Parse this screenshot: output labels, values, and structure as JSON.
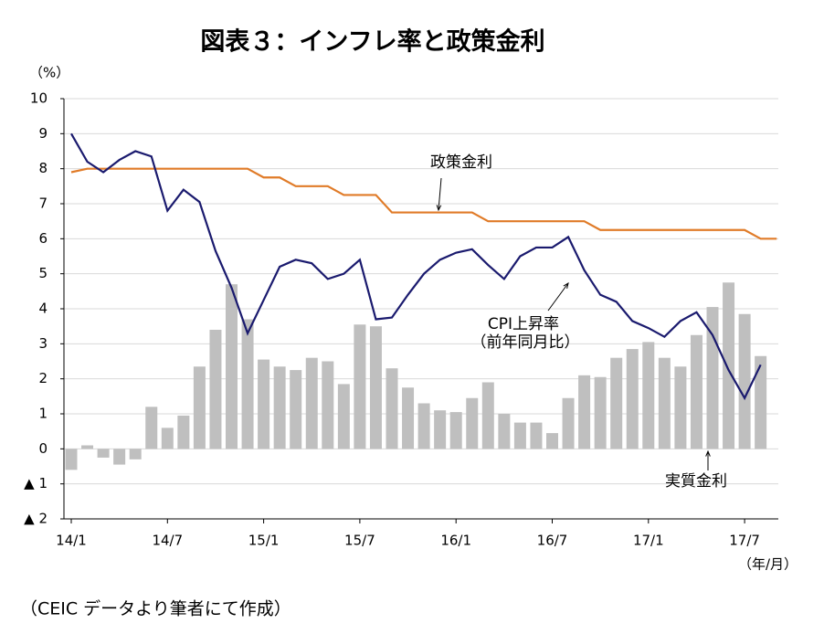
{
  "chart_data": {
    "type": "bar_line",
    "title": "図表３：インフレ率と政策金利",
    "y_unit": "（%）",
    "x_unit": "（年/月）",
    "source": "（CEIC データより筆者にて作成）",
    "categories": [
      "14/1",
      null,
      null,
      null,
      null,
      null,
      "14/7",
      null,
      null,
      null,
      null,
      null,
      "15/1",
      null,
      null,
      null,
      null,
      null,
      "15/7",
      null,
      null,
      null,
      null,
      null,
      "16/1",
      null,
      null,
      null,
      null,
      null,
      "16/7",
      null,
      null,
      null,
      null,
      null,
      "17/1",
      null,
      null,
      null,
      null,
      null,
      "17/7",
      null,
      null
    ],
    "series": [
      {
        "name": "実質金利",
        "kind": "bar",
        "color": "#bfbfbf",
        "values": [
          -0.6,
          0.1,
          -0.25,
          -0.45,
          -0.3,
          1.2,
          0.6,
          0.95,
          2.35,
          3.4,
          4.7,
          3.7,
          2.55,
          2.35,
          2.25,
          2.6,
          2.5,
          1.85,
          3.55,
          3.5,
          2.3,
          1.75,
          1.3,
          1.1,
          1.05,
          1.45,
          1.9,
          1.0,
          0.75,
          0.75,
          0.45,
          1.45,
          2.1,
          2.05,
          2.6,
          2.85,
          3.05,
          2.6,
          2.35,
          3.25,
          4.05,
          4.75,
          3.85,
          2.65,
          null
        ]
      },
      {
        "name": "政策金利",
        "kind": "line",
        "color": "#e07b28",
        "values": [
          7.9,
          8,
          8,
          8,
          8,
          8,
          8,
          8,
          8,
          8,
          8,
          8,
          7.75,
          7.75,
          7.5,
          7.5,
          7.5,
          7.25,
          7.25,
          7.25,
          6.75,
          6.75,
          6.75,
          6.75,
          6.75,
          6.75,
          6.5,
          6.5,
          6.5,
          6.5,
          6.5,
          6.5,
          6.5,
          6.25,
          6.25,
          6.25,
          6.25,
          6.25,
          6.25,
          6.25,
          6.25,
          6.25,
          6.25,
          6,
          6
        ]
      },
      {
        "name": "CPI上昇率",
        "subname": "（前年同月比）",
        "kind": "line",
        "color": "#1a1a6e",
        "values": [
          9.0,
          8.2,
          7.9,
          8.25,
          8.5,
          8.35,
          6.8,
          7.4,
          7.05,
          5.65,
          4.6,
          3.3,
          4.25,
          5.2,
          5.4,
          5.3,
          4.85,
          5.0,
          5.4,
          3.7,
          3.75,
          4.4,
          5.0,
          5.4,
          5.6,
          5.7,
          5.25,
          4.85,
          5.5,
          5.75,
          5.75,
          6.05,
          5.1,
          4.4,
          4.2,
          3.65,
          3.45,
          3.2,
          3.65,
          3.9,
          3.25,
          2.25,
          1.45,
          2.4,
          null
        ]
      }
    ],
    "ylim": [
      -2,
      10
    ],
    "yticks": [
      {
        "value": -2,
        "label": "▲ 2"
      },
      {
        "value": -1,
        "label": "▲ 1"
      },
      0,
      1,
      2,
      3,
      4,
      5,
      6,
      7,
      8,
      9,
      10
    ],
    "grid": true
  }
}
